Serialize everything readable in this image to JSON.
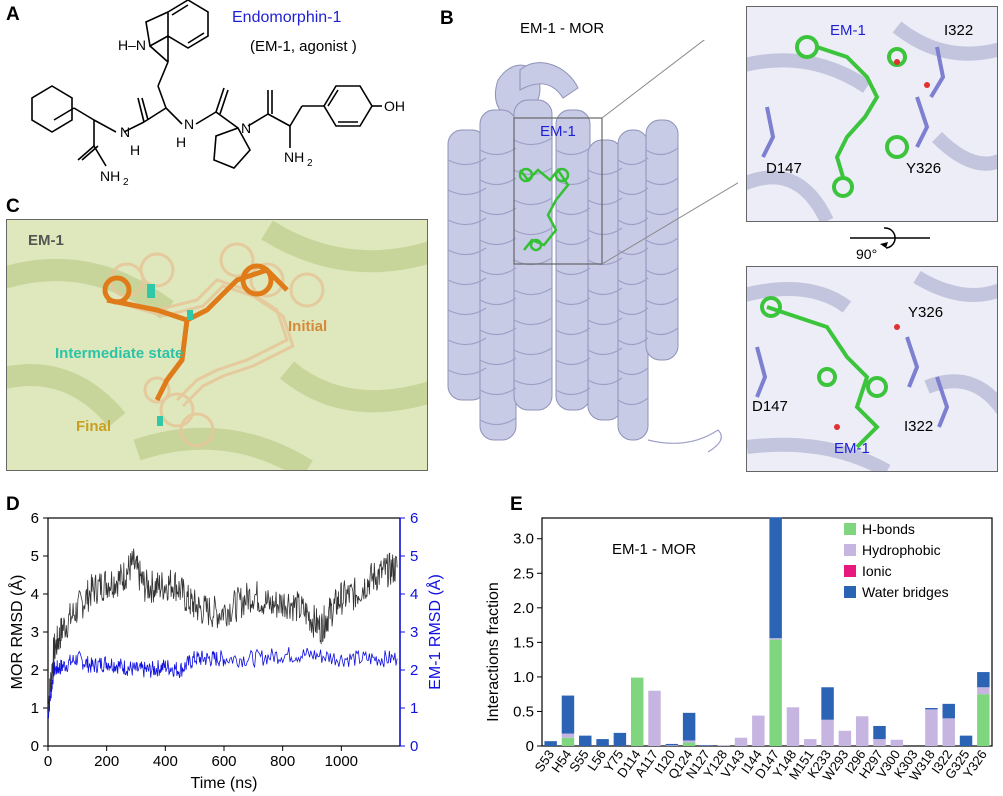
{
  "panels": {
    "a": "A",
    "b": "B",
    "c": "C",
    "d": "D",
    "e": "E"
  },
  "panel_a": {
    "title": "Endomorphin-1",
    "subtitle": "(EM-1, agonist )",
    "atoms": {
      "nh_indole": "H–N",
      "oh": "OH",
      "nh2_right": "NH",
      "nh2_sub": "2",
      "nh2_left": "NH",
      "nh2_left_sub": "2",
      "n_pro": "N",
      "h_left": "H",
      "n_left": "N",
      "h_mid": "H",
      "n_mid": "N"
    }
  },
  "panel_b": {
    "title": "EM-1 - MOR",
    "ligand": "EM-1",
    "inset_top": {
      "ligand": "EM-1",
      "res1": "I322",
      "res2": "D147",
      "res3": "Y326"
    },
    "rotation": "90°",
    "inset_bottom": {
      "ligand": "EM-1",
      "res1": "Y326",
      "res2": "D147",
      "res3": "I322"
    }
  },
  "panel_c": {
    "ligand": "EM-1",
    "initial": "Initial",
    "intermediate": "Intermediate state",
    "final": "Final"
  },
  "panel_d": {
    "ylabel_left": "MOR RMSD (Å)",
    "ylabel_right": "EM-1 RMSD (Å)",
    "xlabel": "Time (ns)",
    "x_ticks": [
      "0",
      "200",
      "400",
      "600",
      "800",
      "1000"
    ],
    "y_ticks": [
      "0",
      "1",
      "2",
      "3",
      "4",
      "5",
      "6"
    ],
    "colors": {
      "mor": "#333333",
      "em1": "#1010e0"
    }
  },
  "panel_e": {
    "annotation": "EM-1 - MOR",
    "ylabel": "Interactions fraction",
    "y_ticks": [
      "0",
      "0.5",
      "1.0",
      "1.5",
      "2.0",
      "2.5",
      "3.0"
    ],
    "legend": [
      "H-bonds",
      "Hydrophobic",
      "Ionic",
      "Water bridges"
    ],
    "colors": {
      "hbond": "#7fd67f",
      "hydrophobic": "#c5b5e0",
      "ionic": "#e8197d",
      "water": "#2b63b5"
    }
  },
  "chart_data": [
    {
      "type": "line",
      "x_label": "Time (ns)",
      "xlim": [
        0,
        1200
      ],
      "ylim_left": [
        0,
        6
      ],
      "ylim_right": [
        0,
        6
      ],
      "series": [
        {
          "name": "MOR RMSD (Å)",
          "axis": "left",
          "x": [
            0,
            20,
            50,
            100,
            150,
            200,
            250,
            290,
            330,
            380,
            430,
            480,
            520,
            580,
            640,
            700,
            760,
            820,
            880,
            930,
            960,
            1000,
            1050,
            1100,
            1150,
            1190
          ],
          "values": [
            1.0,
            2.5,
            3.1,
            3.6,
            4.1,
            4.3,
            4.4,
            4.8,
            4.2,
            4.2,
            4.3,
            3.8,
            3.6,
            3.5,
            3.7,
            4.0,
            3.7,
            3.8,
            3.5,
            3.1,
            3.5,
            3.9,
            4.0,
            4.4,
            4.6,
            4.7
          ]
        },
        {
          "name": "EM-1 RMSD (Å)",
          "axis": "right",
          "x": [
            0,
            20,
            50,
            100,
            150,
            200,
            250,
            300,
            350,
            400,
            450,
            500,
            550,
            600,
            700,
            800,
            900,
            1000,
            1100,
            1190
          ],
          "values": [
            0.8,
            2.0,
            2.1,
            2.3,
            2.1,
            2.2,
            2.1,
            2.0,
            2.0,
            2.1,
            2.0,
            2.3,
            2.3,
            2.3,
            2.3,
            2.4,
            2.4,
            2.3,
            2.3,
            2.3
          ]
        }
      ]
    },
    {
      "type": "bar",
      "stacked": true,
      "categories": [
        "S53",
        "H54",
        "S55",
        "L56",
        "Y75",
        "D114",
        "A117",
        "I120",
        "Q124",
        "N127",
        "Y128",
        "V143",
        "I144",
        "D147",
        "Y148",
        "M151",
        "K233",
        "W293",
        "I296",
        "H297",
        "V300",
        "K303",
        "W318",
        "I322",
        "G325",
        "Y326"
      ],
      "ylim": [
        0,
        3.3
      ],
      "series": [
        {
          "name": "H-bonds",
          "values": [
            0,
            0.12,
            0,
            0,
            0,
            0.99,
            0,
            0,
            0.05,
            0,
            0,
            0,
            0,
            1.54,
            0,
            0,
            0,
            0,
            0,
            0,
            0,
            0,
            0,
            0,
            0,
            0.75
          ]
        },
        {
          "name": "Hydrophobic",
          "values": [
            0,
            0.06,
            0,
            0,
            0,
            0,
            0.8,
            0.01,
            0.03,
            0,
            0.01,
            0.12,
            0.44,
            0.02,
            0.56,
            0.1,
            0.38,
            0.22,
            0.43,
            0.1,
            0.09,
            0,
            0.53,
            0.4,
            0,
            0.1
          ]
        },
        {
          "name": "Ionic",
          "values": [
            0,
            0,
            0,
            0,
            0,
            0,
            0,
            0,
            0,
            0,
            0,
            0,
            0,
            0,
            0,
            0,
            0,
            0,
            0,
            0,
            0,
            0,
            0,
            0,
            0,
            0
          ]
        },
        {
          "name": "Water bridges",
          "values": [
            0.07,
            0.55,
            0.15,
            0.1,
            0.19,
            0,
            0,
            0.02,
            0.4,
            0.01,
            0,
            0,
            0,
            1.75,
            0,
            0,
            0.47,
            0,
            0,
            0.19,
            0,
            0,
            0.02,
            0.21,
            0.15,
            0.22
          ]
        }
      ]
    }
  ]
}
